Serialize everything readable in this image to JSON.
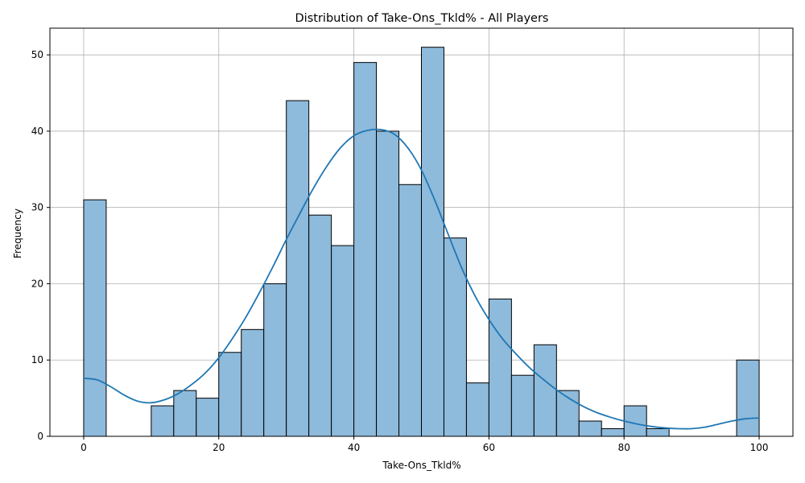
{
  "chart_data": {
    "type": "bar",
    "subtype": "histogram",
    "title": "Distribution of Take-Ons_Tkld% - All Players",
    "xlabel": "Take-Ons_Tkld%",
    "ylabel": "Frequency",
    "xlim": [
      -5,
      105
    ],
    "ylim": [
      0,
      53.5
    ],
    "xticks": [
      0,
      20,
      40,
      60,
      80,
      100
    ],
    "yticks": [
      0,
      10,
      20,
      30,
      40,
      50
    ],
    "grid": true,
    "bin_width": 3.333,
    "bins": [
      {
        "start": 0.0,
        "end": 3.333,
        "count": 31
      },
      {
        "start": 3.333,
        "end": 6.667,
        "count": 0
      },
      {
        "start": 6.667,
        "end": 10.0,
        "count": 0
      },
      {
        "start": 10.0,
        "end": 13.333,
        "count": 4
      },
      {
        "start": 13.333,
        "end": 16.667,
        "count": 6
      },
      {
        "start": 16.667,
        "end": 20.0,
        "count": 5
      },
      {
        "start": 20.0,
        "end": 23.333,
        "count": 11
      },
      {
        "start": 23.333,
        "end": 26.667,
        "count": 14
      },
      {
        "start": 26.667,
        "end": 30.0,
        "count": 20
      },
      {
        "start": 30.0,
        "end": 33.333,
        "count": 44
      },
      {
        "start": 33.333,
        "end": 36.667,
        "count": 29
      },
      {
        "start": 36.667,
        "end": 40.0,
        "count": 25
      },
      {
        "start": 40.0,
        "end": 43.333,
        "count": 49
      },
      {
        "start": 43.333,
        "end": 46.667,
        "count": 40
      },
      {
        "start": 46.667,
        "end": 50.0,
        "count": 33
      },
      {
        "start": 50.0,
        "end": 53.333,
        "count": 51
      },
      {
        "start": 53.333,
        "end": 56.667,
        "count": 26
      },
      {
        "start": 56.667,
        "end": 60.0,
        "count": 7
      },
      {
        "start": 60.0,
        "end": 63.333,
        "count": 18
      },
      {
        "start": 63.333,
        "end": 66.667,
        "count": 8
      },
      {
        "start": 66.667,
        "end": 70.0,
        "count": 12
      },
      {
        "start": 70.0,
        "end": 73.333,
        "count": 6
      },
      {
        "start": 73.333,
        "end": 76.667,
        "count": 2
      },
      {
        "start": 76.667,
        "end": 80.0,
        "count": 1
      },
      {
        "start": 80.0,
        "end": 83.333,
        "count": 4
      },
      {
        "start": 83.333,
        "end": 86.667,
        "count": 1
      },
      {
        "start": 86.667,
        "end": 90.0,
        "count": 0
      },
      {
        "start": 90.0,
        "end": 93.333,
        "count": 0
      },
      {
        "start": 93.333,
        "end": 96.667,
        "count": 0
      },
      {
        "start": 96.667,
        "end": 100.0,
        "count": 10
      }
    ],
    "kde": {
      "x": [
        0,
        2,
        4,
        6,
        8,
        10,
        12,
        14,
        16,
        18,
        20,
        22,
        24,
        26,
        28,
        30,
        32,
        34,
        36,
        38,
        40,
        42,
        44,
        46,
        48,
        50,
        52,
        54,
        56,
        58,
        60,
        62,
        64,
        66,
        68,
        70,
        72,
        74,
        76,
        78,
        80,
        82,
        84,
        86,
        88,
        90,
        92,
        94,
        96,
        98,
        100
      ],
      "y": [
        7.6,
        7.4,
        6.5,
        5.4,
        4.6,
        4.4,
        4.8,
        5.6,
        6.8,
        8.3,
        10.3,
        12.8,
        15.6,
        18.8,
        22.2,
        25.8,
        29.2,
        32.5,
        35.4,
        37.8,
        39.4,
        40.1,
        40.2,
        39.6,
        37.8,
        34.9,
        30.9,
        26.4,
        22.0,
        18.3,
        15.3,
        12.8,
        10.8,
        9.0,
        7.5,
        6.1,
        4.9,
        3.9,
        3.1,
        2.5,
        2.0,
        1.6,
        1.3,
        1.1,
        1.0,
        1.0,
        1.2,
        1.6,
        2.0,
        2.3,
        2.4
      ],
      "color": "#1f77b4"
    },
    "bar_color": "#8ebadb",
    "edge_color": "#000000"
  }
}
